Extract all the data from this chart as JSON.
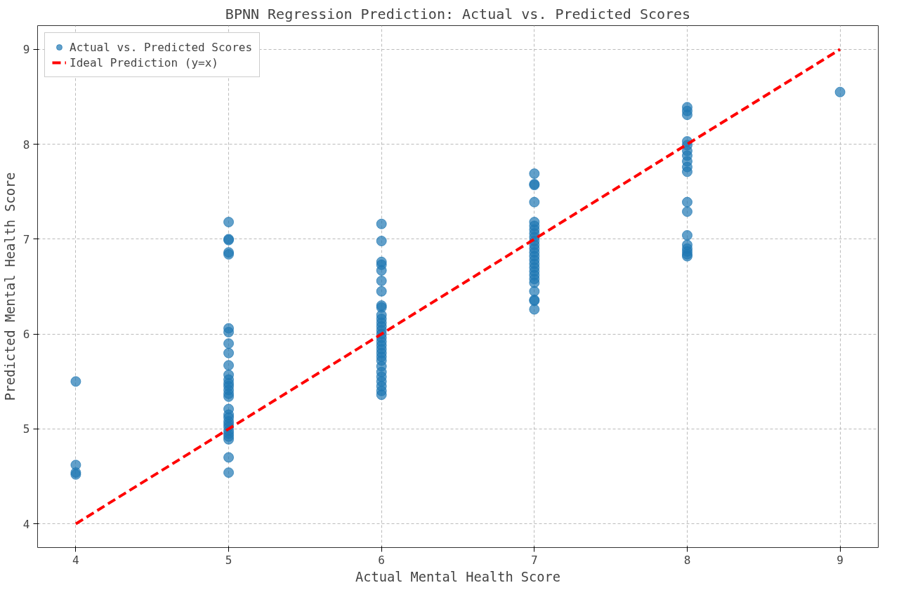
{
  "chart_data": {
    "type": "scatter",
    "title": "BPNN Regression Prediction: Actual vs. Predicted Scores",
    "xlabel": "Actual Mental Health Score",
    "ylabel": "Predicted Mental Health Score",
    "xlim": [
      3.75,
      9.25
    ],
    "ylim": [
      3.75,
      9.25
    ],
    "xticks": [
      4,
      5,
      6,
      7,
      8,
      9
    ],
    "yticks": [
      4,
      5,
      6,
      7,
      8,
      9
    ],
    "grid": true,
    "legend": "top left",
    "marker": "circle",
    "series": [
      {
        "name": "Actual vs. Predicted Scores",
        "color": "#1f77b4",
        "x": [
          4,
          4,
          4,
          4,
          5,
          5,
          5,
          5,
          5,
          5,
          5,
          5,
          5,
          5,
          5,
          5,
          5,
          5,
          5,
          5,
          5,
          5,
          5,
          5,
          5,
          5,
          5,
          5,
          5,
          5,
          5,
          5,
          5,
          6,
          6,
          6,
          6,
          6,
          6,
          6,
          6,
          6,
          6,
          6,
          6,
          6,
          6,
          6,
          6,
          6,
          6,
          6,
          6,
          6,
          6,
          6,
          6,
          6,
          6,
          6,
          6,
          6,
          7,
          7,
          7,
          7,
          7,
          7,
          7,
          7,
          7,
          7,
          7,
          7,
          7,
          7,
          7,
          7,
          7,
          7,
          7,
          7,
          7,
          7,
          7,
          7,
          7,
          8,
          8,
          8,
          8,
          8,
          8,
          8,
          8,
          8,
          8,
          8,
          8,
          8,
          8,
          8,
          8,
          8,
          8,
          9
        ],
        "values": [
          5.5,
          4.62,
          4.54,
          4.52,
          7.18,
          7.0,
          6.99,
          6.86,
          6.84,
          6.06,
          6.02,
          5.9,
          5.8,
          5.67,
          5.57,
          5.52,
          5.48,
          5.45,
          5.41,
          5.37,
          5.34,
          5.21,
          5.15,
          5.12,
          5.08,
          5.05,
          5.02,
          4.98,
          4.95,
          4.92,
          4.89,
          4.7,
          4.54,
          7.16,
          6.98,
          6.76,
          6.73,
          6.67,
          6.56,
          6.45,
          6.3,
          6.28,
          6.2,
          6.16,
          6.12,
          6.08,
          6.04,
          6.0,
          5.96,
          5.92,
          5.88,
          5.84,
          5.8,
          5.76,
          5.72,
          5.66,
          5.6,
          5.55,
          5.5,
          5.45,
          5.4,
          5.36,
          7.69,
          7.58,
          7.57,
          7.39,
          7.18,
          7.14,
          7.1,
          7.06,
          7.02,
          6.98,
          6.94,
          6.9,
          6.86,
          6.82,
          6.78,
          6.74,
          6.7,
          6.66,
          6.62,
          6.58,
          6.54,
          6.45,
          6.36,
          6.35,
          6.26,
          8.39,
          8.35,
          8.31,
          8.03,
          7.99,
          7.93,
          7.88,
          7.82,
          7.76,
          7.71,
          7.39,
          7.29,
          7.04,
          6.94,
          6.9,
          6.87,
          6.84,
          6.82,
          8.55
        ]
      },
      {
        "name": "Ideal Prediction (y=x)",
        "type": "line",
        "color": "#ff0000",
        "line_style": "dashed",
        "marker": "none",
        "x": [
          4,
          9
        ],
        "values": [
          4,
          9
        ]
      }
    ]
  }
}
